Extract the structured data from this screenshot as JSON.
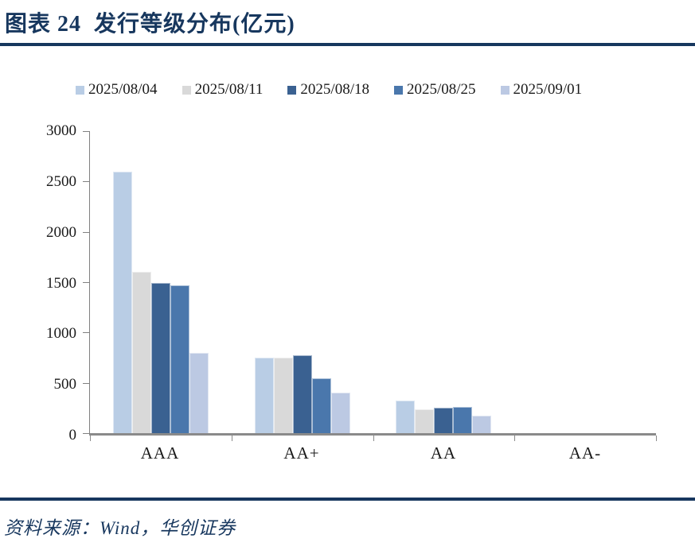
{
  "title": "图表 24  发行等级分布(亿元)",
  "source": "资料来源：Wind，华创证券",
  "colors": {
    "accent_navy": "#17375E",
    "axis_gray": "#808080",
    "baseline_gray": "#8A8A8A",
    "text": "#1A1A1A"
  },
  "chart_data": {
    "type": "bar",
    "title": "发行等级分布(亿元)",
    "categories": [
      "AAA",
      "AA+",
      "AA",
      "AA-"
    ],
    "series": [
      {
        "name": "2025/08/04",
        "color": "#B9CDE5",
        "values": [
          2600,
          750,
          320,
          0
        ]
      },
      {
        "name": "2025/08/11",
        "color": "#D9D9D9",
        "values": [
          1600,
          750,
          240,
          0
        ]
      },
      {
        "name": "2025/08/18",
        "color": "#3A6191",
        "values": [
          1490,
          770,
          250,
          0
        ]
      },
      {
        "name": "2025/08/25",
        "color": "#4A77AC",
        "values": [
          1470,
          545,
          260,
          0
        ]
      },
      {
        "name": "2025/09/01",
        "color": "#BCC9E3",
        "values": [
          800,
          400,
          170,
          0
        ]
      }
    ],
    "xlabel": "",
    "ylabel": "",
    "ylim": [
      0,
      3000
    ],
    "yticks": [
      0,
      500,
      1000,
      1500,
      2000,
      2500,
      3000
    ],
    "grid": false,
    "legend_position": "top"
  }
}
